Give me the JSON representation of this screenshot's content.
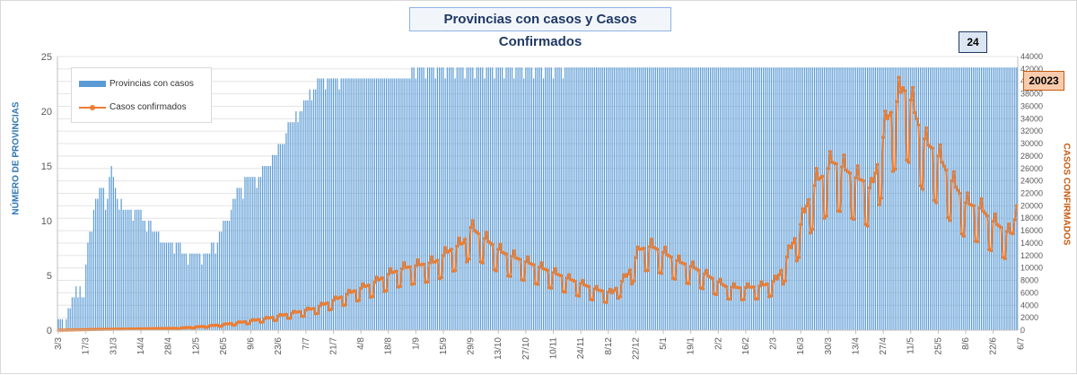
{
  "chart_data": {
    "type": "bar+line",
    "title": "Provincias con casos y Casos Confirmados",
    "x_tick_labels": [
      "3/3",
      "17/3",
      "31/3",
      "14/4",
      "28/4",
      "12/5",
      "26/5",
      "9/6",
      "23/6",
      "7/7",
      "21/7",
      "4/8",
      "18/8",
      "1/9",
      "15/9",
      "29/9",
      "13/10",
      "27/10",
      "10/11",
      "24/11",
      "8/12",
      "22/12",
      "5/1",
      "19/1",
      "2/2",
      "16/2",
      "2/3",
      "16/3",
      "30/3",
      "13/4",
      "27/4",
      "11/5",
      "25/5",
      "8/6",
      "22/6",
      "6/7"
    ],
    "y_left": {
      "label": "NÚMERO DE PROVINCIAS",
      "range": [
        0,
        25
      ],
      "ticks": [
        "0",
        "5",
        "10",
        "15",
        "20",
        "25"
      ]
    },
    "y_right": {
      "label": "CASOS CONFIRMADOS",
      "range": [
        0,
        44000
      ],
      "ticks": [
        "0",
        "2000",
        "4000",
        "6000",
        "8000",
        "10000",
        "12000",
        "14000",
        "16000",
        "18000",
        "20000",
        "22000",
        "24000",
        "26000",
        "28000",
        "30000",
        "32000",
        "34000",
        "36000",
        "38000",
        "40000",
        "42000",
        "44000"
      ]
    },
    "legend": {
      "position": "top-left"
    },
    "grid": {
      "horizontal": true
    },
    "series": [
      {
        "name": "Provincias con casos",
        "type": "bar",
        "axis": "left",
        "color": "#5b9bd5",
        "anchors": [
          [
            0,
            1
          ],
          [
            3,
            1
          ],
          [
            6,
            2
          ],
          [
            10,
            4
          ],
          [
            13,
            3
          ],
          [
            15,
            8
          ],
          [
            18,
            11
          ],
          [
            21,
            13
          ],
          [
            25,
            12
          ],
          [
            27,
            15
          ],
          [
            30,
            12
          ],
          [
            35,
            11
          ],
          [
            40,
            11
          ],
          [
            45,
            10
          ],
          [
            50,
            9
          ],
          [
            55,
            8
          ],
          [
            60,
            8
          ],
          [
            65,
            7
          ],
          [
            70,
            7
          ],
          [
            75,
            7
          ],
          [
            80,
            8
          ],
          [
            85,
            10
          ],
          [
            88,
            11
          ],
          [
            92,
            13
          ],
          [
            97,
            14
          ],
          [
            101,
            14
          ],
          [
            106,
            15
          ],
          [
            110,
            16
          ],
          [
            114,
            17
          ],
          [
            118,
            19
          ],
          [
            123,
            20
          ],
          [
            126,
            21
          ],
          [
            130,
            22
          ],
          [
            134,
            23
          ],
          [
            140,
            23
          ],
          [
            145,
            23
          ],
          [
            150,
            23
          ],
          [
            160,
            23
          ],
          [
            200,
            24
          ],
          [
            250,
            24
          ],
          [
            300,
            24
          ],
          [
            350,
            24
          ],
          [
            400,
            24
          ],
          [
            450,
            24
          ],
          [
            488,
            24
          ]
        ],
        "last_value": 24
      },
      {
        "name": "Casos confirmados",
        "type": "line",
        "axis": "right",
        "color": "#ed7d31",
        "anchors": [
          [
            0,
            0
          ],
          [
            20,
            120
          ],
          [
            40,
            200
          ],
          [
            60,
            300
          ],
          [
            72,
            550
          ],
          [
            84,
            900
          ],
          [
            96,
            1400
          ],
          [
            108,
            2000
          ],
          [
            120,
            2800
          ],
          [
            130,
            3500
          ],
          [
            138,
            4500
          ],
          [
            145,
            5500
          ],
          [
            152,
            6500
          ],
          [
            160,
            7500
          ],
          [
            168,
            9000
          ],
          [
            176,
            10000
          ],
          [
            184,
            10500
          ],
          [
            192,
            11000
          ],
          [
            200,
            13000
          ],
          [
            206,
            14000
          ],
          [
            210,
            16500
          ],
          [
            214,
            15500
          ],
          [
            220,
            14000
          ],
          [
            226,
            12500
          ],
          [
            234,
            11500
          ],
          [
            242,
            10500
          ],
          [
            250,
            9500
          ],
          [
            258,
            8500
          ],
          [
            266,
            7500
          ],
          [
            274,
            6500
          ],
          [
            282,
            6000
          ],
          [
            290,
            9000
          ],
          [
            296,
            13000
          ],
          [
            302,
            13500
          ],
          [
            308,
            12500
          ],
          [
            316,
            11000
          ],
          [
            324,
            10000
          ],
          [
            332,
            8500
          ],
          [
            340,
            7000
          ],
          [
            348,
            6800
          ],
          [
            356,
            7000
          ],
          [
            362,
            7500
          ],
          [
            366,
            8200
          ],
          [
            370,
            11000
          ],
          [
            374,
            14000
          ],
          [
            378,
            17000
          ],
          [
            382,
            21000
          ],
          [
            386,
            24000
          ],
          [
            390,
            25000
          ],
          [
            394,
            27000
          ],
          [
            398,
            26500
          ],
          [
            402,
            25500
          ],
          [
            406,
            24500
          ],
          [
            410,
            24000
          ],
          [
            414,
            22500
          ],
          [
            418,
            28000
          ],
          [
            422,
            34000
          ],
          [
            426,
            36000
          ],
          [
            430,
            39000
          ],
          [
            434,
            37000
          ],
          [
            438,
            33000
          ],
          [
            442,
            30000
          ],
          [
            446,
            29000
          ],
          [
            450,
            27000
          ],
          [
            454,
            24500
          ],
          [
            458,
            22500
          ],
          [
            462,
            20500
          ],
          [
            466,
            20000
          ],
          [
            470,
            19500
          ],
          [
            474,
            18000
          ],
          [
            478,
            17000
          ],
          [
            482,
            16000
          ],
          [
            486,
            15500
          ],
          [
            488,
            20023
          ]
        ],
        "last_value": 20023
      }
    ]
  },
  "badges": {
    "provincias": "24",
    "casos": "20023"
  }
}
